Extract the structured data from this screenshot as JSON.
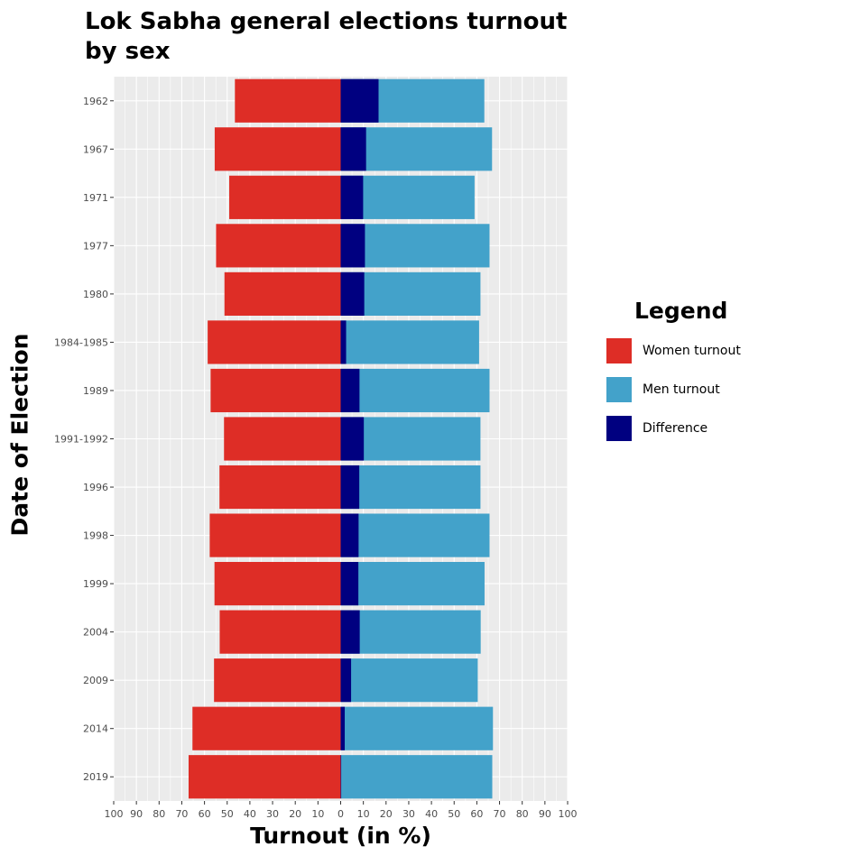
{
  "chart_data": {
    "type": "bar",
    "title": "Lok Sabha general elections turnout by sex",
    "xlabel": "Turnout (in %)",
    "ylabel": "Date of Election",
    "xlim": [
      -100,
      100
    ],
    "x_ticks": [
      "100",
      "90",
      "80",
      "70",
      "60",
      "50",
      "40",
      "30",
      "20",
      "10",
      "0",
      "10",
      "20",
      "30",
      "40",
      "50",
      "60",
      "70",
      "80",
      "90",
      "100"
    ],
    "categories": [
      "1962",
      "1967",
      "1971",
      "1977",
      "1980",
      "1984-1985",
      "1989",
      "1991-1992",
      "1996",
      "1998",
      "1999",
      "2004",
      "2009",
      "2014",
      "2019"
    ],
    "series": [
      {
        "name": "Women turnout",
        "color": "#de2d26",
        "values": [
          46.6,
          55.5,
          49.1,
          54.9,
          51.2,
          58.6,
          57.3,
          51.4,
          53.4,
          57.7,
          55.6,
          53.3,
          55.8,
          65.3,
          67.0
        ]
      },
      {
        "name": "Men turnout",
        "color": "#43a2ca",
        "values": [
          63.3,
          66.7,
          59.0,
          65.6,
          61.6,
          61.0,
          65.6,
          61.6,
          61.6,
          65.6,
          63.4,
          61.7,
          60.4,
          67.1,
          66.8
        ]
      },
      {
        "name": "Difference",
        "color": "#000080",
        "values": [
          16.7,
          11.2,
          9.9,
          10.7,
          10.4,
          2.4,
          8.3,
          10.2,
          8.2,
          7.9,
          7.8,
          8.4,
          4.6,
          1.8,
          0.2
        ]
      }
    ],
    "grid": true,
    "legend": {
      "title": "Legend",
      "position": "right"
    }
  }
}
